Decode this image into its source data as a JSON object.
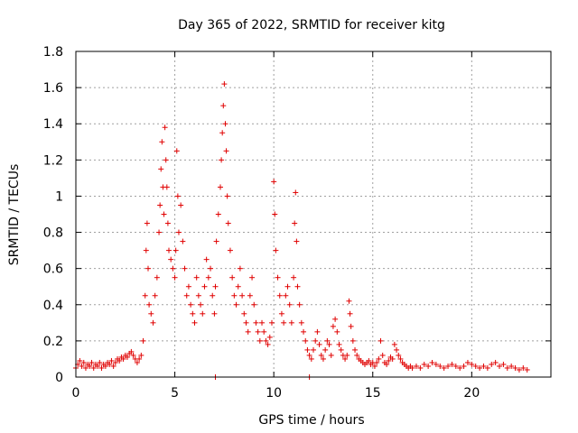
{
  "chart_data": {
    "type": "scatter",
    "title": "Day 365 of 2022, SRMTID for receiver kitg",
    "xlabel": "GPS time / hours",
    "ylabel": "SRMTID / TECUs",
    "xlim": [
      0,
      24
    ],
    "ylim": [
      0,
      1.8
    ],
    "x_ticks": [
      0,
      5,
      10,
      15,
      20
    ],
    "x_tick_labels": [
      "0",
      "5",
      "10",
      "15",
      "20"
    ],
    "y_ticks": [
      0,
      0.2,
      0.4,
      0.6,
      0.8,
      1.0,
      1.2,
      1.4,
      1.6,
      1.8
    ],
    "y_tick_labels": [
      "0",
      "0.2",
      "0.4",
      "0.6",
      "0.8",
      "1",
      "1.2",
      "1.4",
      "1.6",
      "1.8"
    ],
    "grid": true,
    "marker": "plus",
    "color": "#e00000",
    "series": [
      {
        "name": "SRMTID",
        "points": [
          [
            0.0,
            0.05
          ],
          [
            0.1,
            0.07
          ],
          [
            0.2,
            0.09
          ],
          [
            0.3,
            0.06
          ],
          [
            0.4,
            0.08
          ],
          [
            0.5,
            0.05
          ],
          [
            0.6,
            0.07
          ],
          [
            0.7,
            0.06
          ],
          [
            0.8,
            0.08
          ],
          [
            0.9,
            0.05
          ],
          [
            1.0,
            0.07
          ],
          [
            1.1,
            0.06
          ],
          [
            1.2,
            0.08
          ],
          [
            1.3,
            0.05
          ],
          [
            1.4,
            0.07
          ],
          [
            1.5,
            0.06
          ],
          [
            1.6,
            0.08
          ],
          [
            1.7,
            0.07
          ],
          [
            1.8,
            0.09
          ],
          [
            1.9,
            0.06
          ],
          [
            2.0,
            0.08
          ],
          [
            2.1,
            0.1
          ],
          [
            2.2,
            0.09
          ],
          [
            2.3,
            0.11
          ],
          [
            2.4,
            0.1
          ],
          [
            2.5,
            0.12
          ],
          [
            2.6,
            0.11
          ],
          [
            2.7,
            0.13
          ],
          [
            2.8,
            0.14
          ],
          [
            2.9,
            0.12
          ],
          [
            3.0,
            0.1
          ],
          [
            3.1,
            0.08
          ],
          [
            3.2,
            0.1
          ],
          [
            3.3,
            0.12
          ],
          [
            3.4,
            0.2
          ],
          [
            3.5,
            0.45
          ],
          [
            3.55,
            0.7
          ],
          [
            3.6,
            0.85
          ],
          [
            3.65,
            0.6
          ],
          [
            3.7,
            0.4
          ],
          [
            3.8,
            0.35
          ],
          [
            3.9,
            0.3
          ],
          [
            4.0,
            0.45
          ],
          [
            4.1,
            0.55
          ],
          [
            4.2,
            0.8
          ],
          [
            4.25,
            0.95
          ],
          [
            4.3,
            1.15
          ],
          [
            4.35,
            1.3
          ],
          [
            4.4,
            1.05
          ],
          [
            4.45,
            0.9
          ],
          [
            4.5,
            1.38
          ],
          [
            4.55,
            1.2
          ],
          [
            4.6,
            1.05
          ],
          [
            4.65,
            0.85
          ],
          [
            4.7,
            0.7
          ],
          [
            4.8,
            0.65
          ],
          [
            4.9,
            0.6
          ],
          [
            5.0,
            0.55
          ],
          [
            5.05,
            0.7
          ],
          [
            5.1,
            1.25
          ],
          [
            5.15,
            1.0
          ],
          [
            5.2,
            0.8
          ],
          [
            5.3,
            0.95
          ],
          [
            5.4,
            0.75
          ],
          [
            5.5,
            0.6
          ],
          [
            5.6,
            0.45
          ],
          [
            5.7,
            0.5
          ],
          [
            5.8,
            0.4
          ],
          [
            5.9,
            0.35
          ],
          [
            6.0,
            0.3
          ],
          [
            6.1,
            0.55
          ],
          [
            6.2,
            0.45
          ],
          [
            6.3,
            0.4
          ],
          [
            6.4,
            0.35
          ],
          [
            6.5,
            0.5
          ],
          [
            6.6,
            0.65
          ],
          [
            6.7,
            0.55
          ],
          [
            6.8,
            0.6
          ],
          [
            6.9,
            0.45
          ],
          [
            7.0,
            0.35
          ],
          [
            7.05,
            0.5
          ],
          [
            7.1,
            0.75
          ],
          [
            7.2,
            0.9
          ],
          [
            7.3,
            1.05
          ],
          [
            7.35,
            1.2
          ],
          [
            7.4,
            1.35
          ],
          [
            7.45,
            1.5
          ],
          [
            7.5,
            1.62
          ],
          [
            7.55,
            1.4
          ],
          [
            7.6,
            1.25
          ],
          [
            7.65,
            1.0
          ],
          [
            7.7,
            0.85
          ],
          [
            7.8,
            0.7
          ],
          [
            7.9,
            0.55
          ],
          [
            8.0,
            0.45
          ],
          [
            8.1,
            0.4
          ],
          [
            8.2,
            0.5
          ],
          [
            8.3,
            0.6
          ],
          [
            8.4,
            0.45
          ],
          [
            8.5,
            0.35
          ],
          [
            8.6,
            0.3
          ],
          [
            8.7,
            0.25
          ],
          [
            8.8,
            0.45
          ],
          [
            8.9,
            0.55
          ],
          [
            9.0,
            0.4
          ],
          [
            9.1,
            0.3
          ],
          [
            9.2,
            0.25
          ],
          [
            9.3,
            0.2
          ],
          [
            9.4,
            0.3
          ],
          [
            9.5,
            0.25
          ],
          [
            9.6,
            0.2
          ],
          [
            9.7,
            0.18
          ],
          [
            9.8,
            0.22
          ],
          [
            9.9,
            0.3
          ],
          [
            10.0,
            1.08
          ],
          [
            10.05,
            0.9
          ],
          [
            10.1,
            0.7
          ],
          [
            10.2,
            0.55
          ],
          [
            10.3,
            0.45
          ],
          [
            10.4,
            0.35
          ],
          [
            10.5,
            0.3
          ],
          [
            10.6,
            0.45
          ],
          [
            10.7,
            0.5
          ],
          [
            10.8,
            0.4
          ],
          [
            10.9,
            0.3
          ],
          [
            11.0,
            0.55
          ],
          [
            11.05,
            0.85
          ],
          [
            11.1,
            1.02
          ],
          [
            11.15,
            0.75
          ],
          [
            11.2,
            0.5
          ],
          [
            11.3,
            0.4
          ],
          [
            11.4,
            0.3
          ],
          [
            11.5,
            0.25
          ],
          [
            11.6,
            0.2
          ],
          [
            11.7,
            0.15
          ],
          [
            11.8,
            0.12
          ],
          [
            11.9,
            0.1
          ],
          [
            12.0,
            0.15
          ],
          [
            12.1,
            0.2
          ],
          [
            12.2,
            0.25
          ],
          [
            12.3,
            0.18
          ],
          [
            12.4,
            0.12
          ],
          [
            12.5,
            0.1
          ],
          [
            12.6,
            0.15
          ],
          [
            12.7,
            0.2
          ],
          [
            12.8,
            0.18
          ],
          [
            12.9,
            0.12
          ],
          [
            13.0,
            0.28
          ],
          [
            13.1,
            0.32
          ],
          [
            13.2,
            0.25
          ],
          [
            13.3,
            0.18
          ],
          [
            13.4,
            0.15
          ],
          [
            13.5,
            0.12
          ],
          [
            13.6,
            0.1
          ],
          [
            13.7,
            0.12
          ],
          [
            13.8,
            0.42
          ],
          [
            13.85,
            0.35
          ],
          [
            13.9,
            0.28
          ],
          [
            14.0,
            0.2
          ],
          [
            14.1,
            0.15
          ],
          [
            14.2,
            0.12
          ],
          [
            14.3,
            0.1
          ],
          [
            14.4,
            0.09
          ],
          [
            14.5,
            0.08
          ],
          [
            14.6,
            0.07
          ],
          [
            14.7,
            0.08
          ],
          [
            14.8,
            0.09
          ],
          [
            14.9,
            0.07
          ],
          [
            15.0,
            0.08
          ],
          [
            15.1,
            0.06
          ],
          [
            15.2,
            0.08
          ],
          [
            15.3,
            0.1
          ],
          [
            15.4,
            0.2
          ],
          [
            15.5,
            0.12
          ],
          [
            15.6,
            0.08
          ],
          [
            15.7,
            0.07
          ],
          [
            15.8,
            0.09
          ],
          [
            15.9,
            0.11
          ],
          [
            16.0,
            0.1
          ],
          [
            16.1,
            0.18
          ],
          [
            16.2,
            0.15
          ],
          [
            16.3,
            0.12
          ],
          [
            16.4,
            0.1
          ],
          [
            16.5,
            0.08
          ],
          [
            16.6,
            0.07
          ],
          [
            16.7,
            0.06
          ],
          [
            16.8,
            0.05
          ],
          [
            16.9,
            0.06
          ],
          [
            17.0,
            0.05
          ],
          [
            17.2,
            0.06
          ],
          [
            17.4,
            0.05
          ],
          [
            17.6,
            0.07
          ],
          [
            17.8,
            0.06
          ],
          [
            18.0,
            0.08
          ],
          [
            18.2,
            0.07
          ],
          [
            18.4,
            0.06
          ],
          [
            18.6,
            0.05
          ],
          [
            18.8,
            0.06
          ],
          [
            19.0,
            0.07
          ],
          [
            19.2,
            0.06
          ],
          [
            19.4,
            0.05
          ],
          [
            19.6,
            0.06
          ],
          [
            19.8,
            0.08
          ],
          [
            20.0,
            0.07
          ],
          [
            20.2,
            0.06
          ],
          [
            20.4,
            0.05
          ],
          [
            20.6,
            0.06
          ],
          [
            20.8,
            0.05
          ],
          [
            21.0,
            0.07
          ],
          [
            21.2,
            0.08
          ],
          [
            21.4,
            0.06
          ],
          [
            21.6,
            0.07
          ],
          [
            21.8,
            0.05
          ],
          [
            22.0,
            0.06
          ],
          [
            22.2,
            0.05
          ],
          [
            22.4,
            0.04
          ],
          [
            22.6,
            0.05
          ],
          [
            22.8,
            0.04
          ],
          [
            7.05,
            0.0
          ],
          [
            11.8,
            0.0
          ]
        ]
      }
    ]
  }
}
